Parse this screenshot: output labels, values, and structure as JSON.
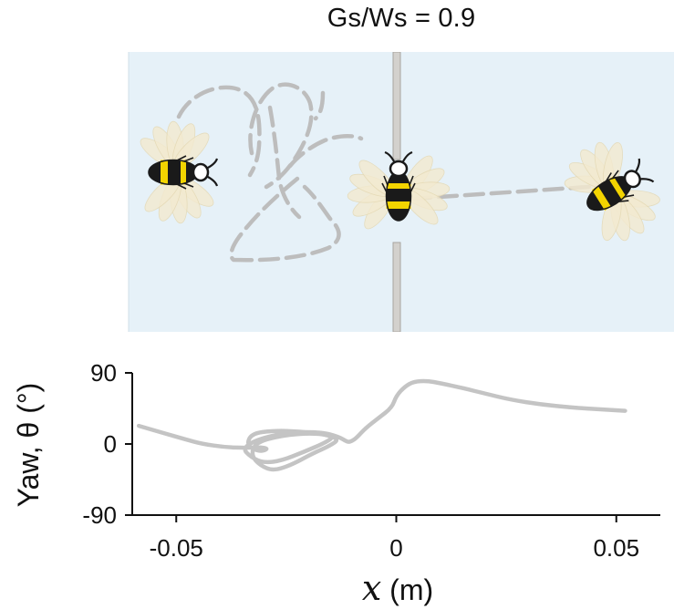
{
  "figure": {
    "title": "Gs/Ws = 0.9"
  },
  "arena": {
    "background_color": "#e6f1f8",
    "post_color": "#b9b6b1",
    "path_color": "#bdbdbd",
    "bees": [
      {
        "name": "bee-start-icon"
      },
      {
        "name": "bee-gap-icon"
      },
      {
        "name": "bee-end-icon"
      }
    ]
  },
  "chart_data": {
    "type": "line",
    "xlabel_symbol": "x",
    "xlabel_unit": " (m)",
    "ylabel": "Yaw, θ (°)",
    "xlim": [
      -0.06,
      0.06
    ],
    "ylim": [
      -90,
      90
    ],
    "x_ticks": [
      -0.05,
      0,
      0.05
    ],
    "x_tick_labels": [
      "-0.05",
      "0",
      "0.05"
    ],
    "y_ticks": [
      90,
      0,
      -90
    ],
    "y_tick_labels": [
      "90",
      "0",
      "-90"
    ],
    "line_color": "#c4c4c4",
    "series": [
      {
        "points": [
          [
            -0.0585,
            23
          ],
          [
            -0.053,
            14
          ],
          [
            -0.048,
            6
          ],
          [
            -0.044,
            0
          ],
          [
            -0.039,
            -4
          ],
          [
            -0.034,
            -5
          ],
          [
            -0.031,
            -4
          ],
          [
            -0.029,
            -6
          ],
          [
            -0.031,
            -10
          ],
          [
            -0.034,
            -2
          ],
          [
            -0.033,
            13
          ],
          [
            -0.028,
            17
          ],
          [
            -0.022,
            16
          ],
          [
            -0.016,
            12
          ],
          [
            -0.013,
            6
          ],
          [
            -0.015,
            -2
          ],
          [
            -0.019,
            -12
          ],
          [
            -0.024,
            -27
          ],
          [
            -0.028,
            -34
          ],
          [
            -0.031,
            -27
          ],
          [
            -0.033,
            -14
          ],
          [
            -0.032,
            2
          ],
          [
            -0.026,
            11
          ],
          [
            -0.019,
            14
          ],
          [
            -0.014,
            10
          ],
          [
            -0.016,
            2
          ],
          [
            -0.021,
            -10
          ],
          [
            -0.026,
            -21
          ],
          [
            -0.03,
            -24
          ],
          [
            -0.033,
            -17
          ],
          [
            -0.035,
            -5
          ],
          [
            -0.031,
            7
          ],
          [
            -0.024,
            15
          ],
          [
            -0.017,
            15
          ],
          [
            -0.013,
            9
          ],
          [
            -0.011,
            2
          ],
          [
            -0.01,
            4
          ],
          [
            -0.009,
            8
          ],
          [
            -0.007,
            20
          ],
          [
            -0.004,
            33
          ],
          [
            -0.001,
            46
          ],
          [
            0.0,
            61
          ],
          [
            0.002,
            73
          ],
          [
            0.004,
            79
          ],
          [
            0.007,
            80
          ],
          [
            0.01,
            77
          ],
          [
            0.015,
            71
          ],
          [
            0.02,
            64
          ],
          [
            0.026,
            56
          ],
          [
            0.033,
            50
          ],
          [
            0.04,
            46
          ],
          [
            0.046,
            44
          ],
          [
            0.052,
            42
          ]
        ]
      }
    ]
  }
}
